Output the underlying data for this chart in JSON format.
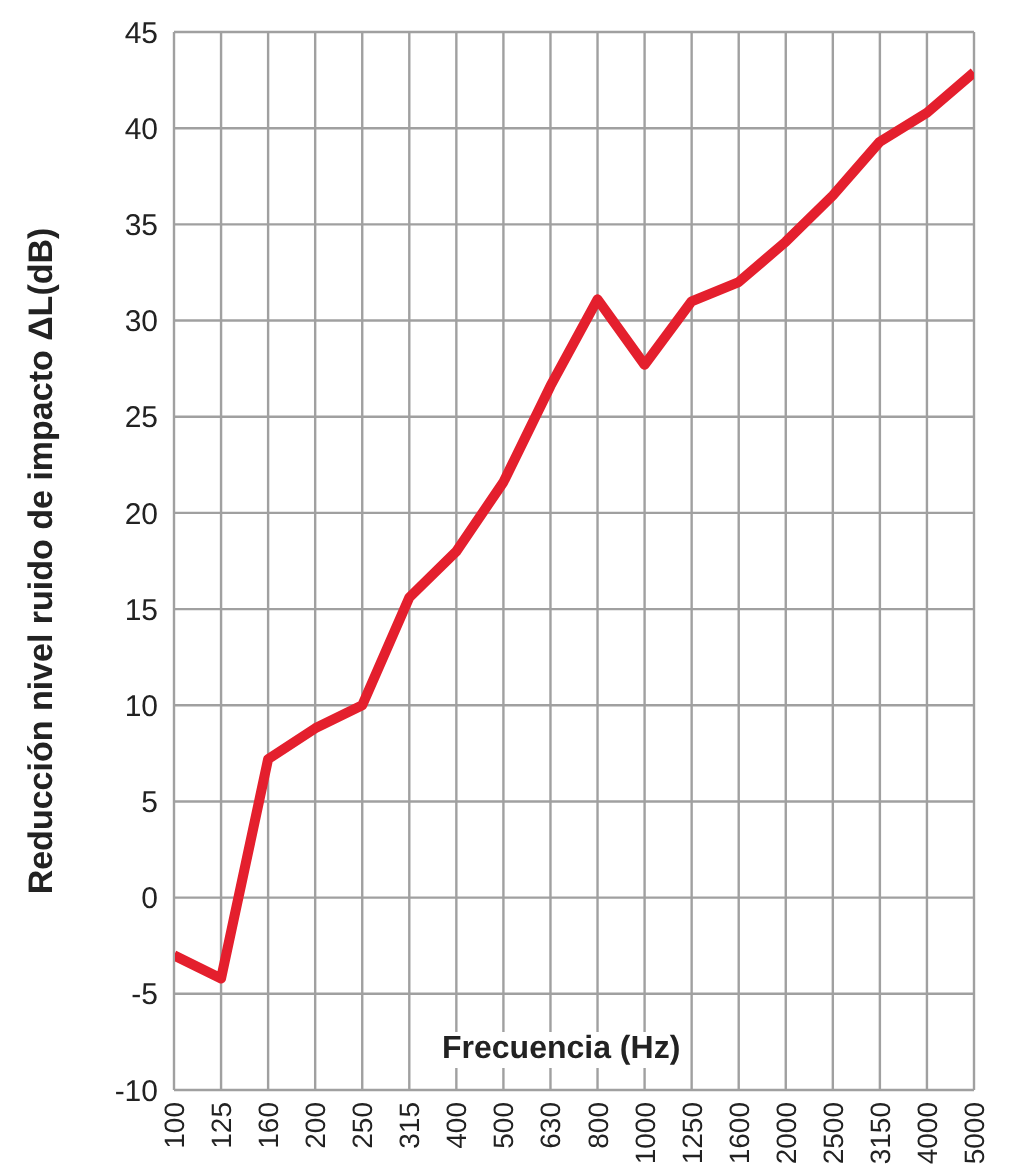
{
  "chart_data": {
    "type": "line",
    "xlabel": "Frecuencia (Hz)",
    "ylabel": "Reducción nivel ruido de impacto ΔL(dB)",
    "categories": [
      "100",
      "125",
      "160",
      "200",
      "250",
      "315",
      "400",
      "500",
      "630",
      "800",
      "1000",
      "1250",
      "1600",
      "2000",
      "2500",
      "3150",
      "4000",
      "5000"
    ],
    "series": [
      {
        "color": "#e41f2d",
        "values": [
          -3.0,
          -4.2,
          7.2,
          8.8,
          10.0,
          15.6,
          18.0,
          21.6,
          26.6,
          31.1,
          27.7,
          31.0,
          32.0,
          34.1,
          36.5,
          39.3,
          40.8,
          42.9
        ]
      }
    ],
    "ylim": [
      -10,
      45
    ],
    "yticks": [
      -10,
      -5,
      0,
      5,
      10,
      15,
      20,
      25,
      30,
      35,
      40,
      45
    ],
    "grid": true,
    "marker": "none",
    "line_style": "solid"
  }
}
